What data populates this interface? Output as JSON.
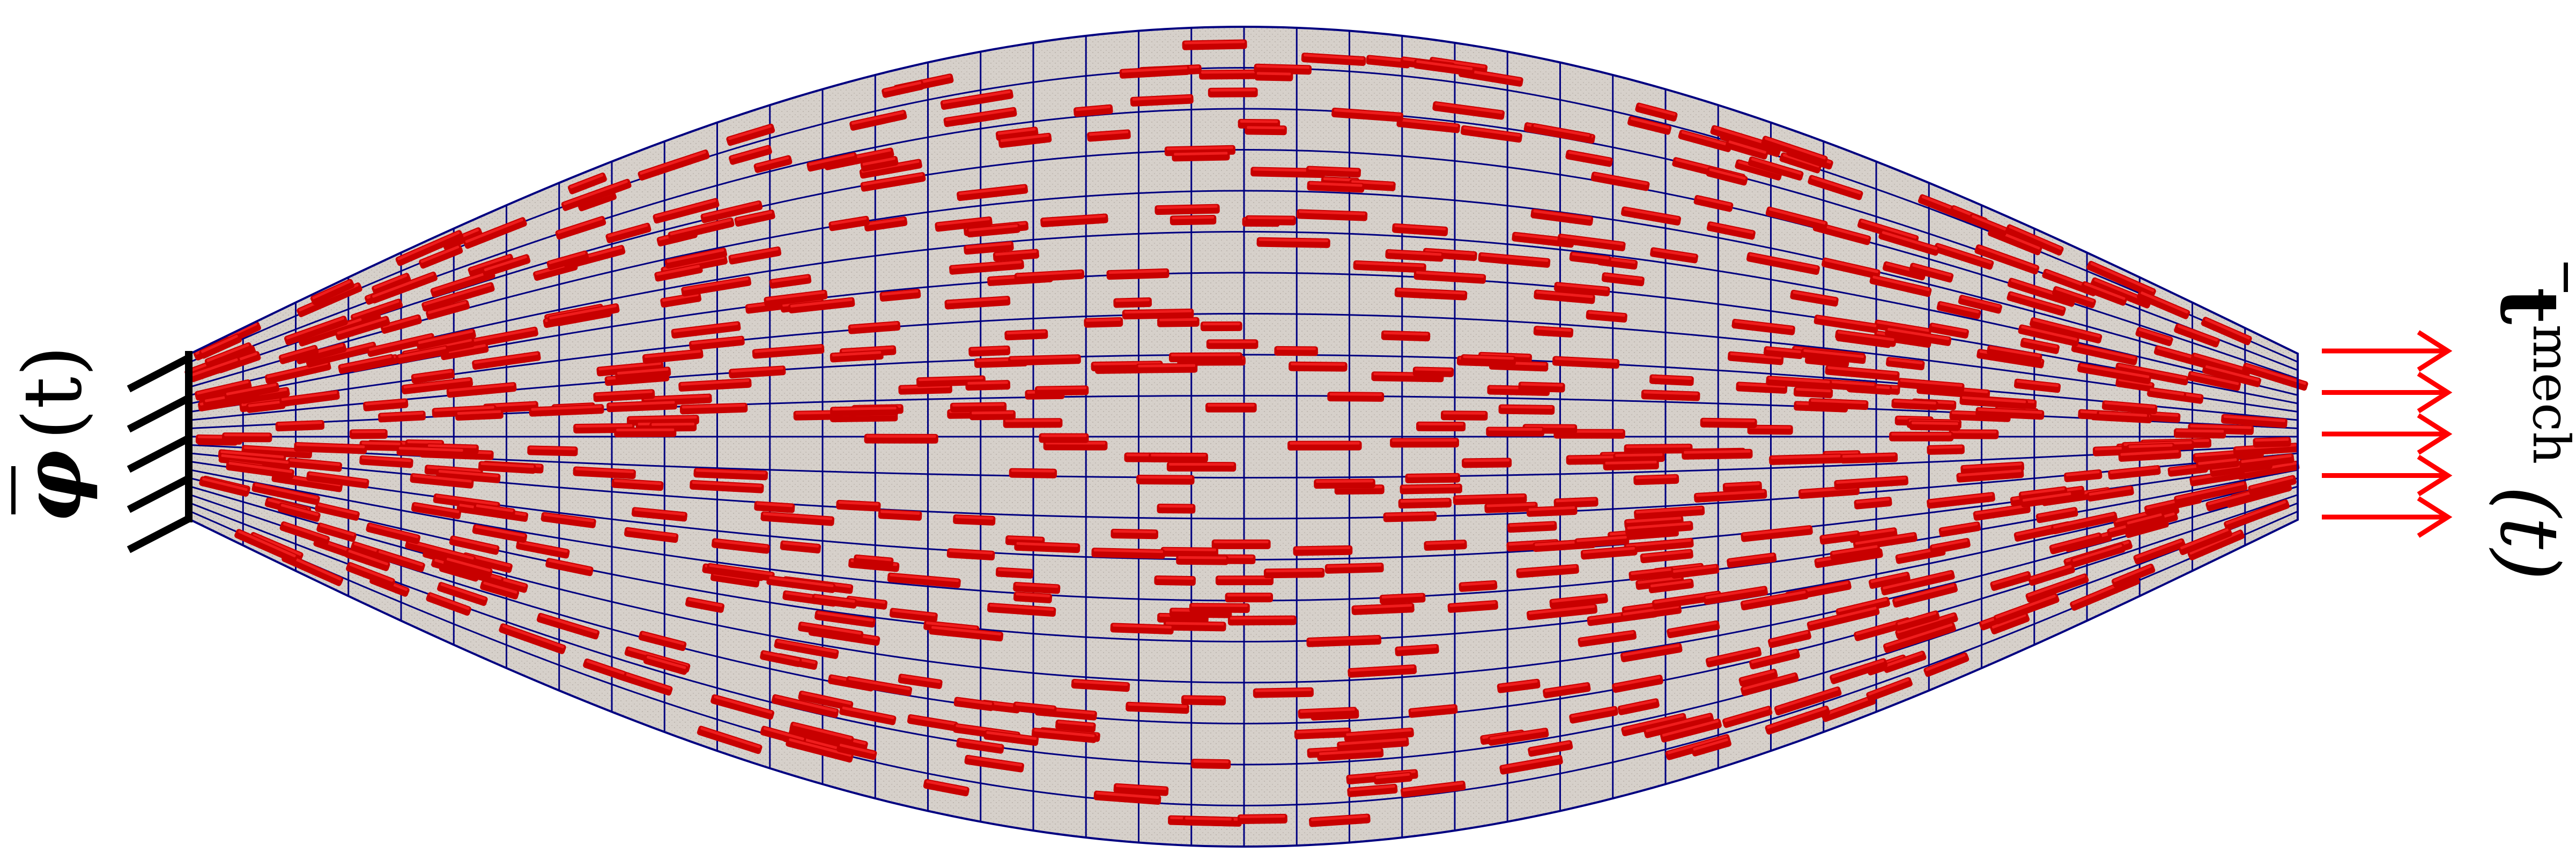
{
  "figure": {
    "left_label": {
      "symbol": "φ",
      "argument": "(t)"
    },
    "right_label": {
      "symbol": "t",
      "superscript": "mech",
      "argument": "(t)"
    },
    "colors": {
      "fibers": "#c80000",
      "fiber_highlight": "#ff2a2a",
      "mesh_lines": "#000080",
      "body_fill": "#d2ccc6",
      "load_arrows": "#ff0000",
      "support": "#000000",
      "background": "#ffffff"
    },
    "mesh": {
      "columns": 40,
      "rows": 20,
      "fiber_count": 720
    },
    "loads": {
      "arrow_count": 5
    },
    "support": {
      "prong_count": 5
    }
  }
}
